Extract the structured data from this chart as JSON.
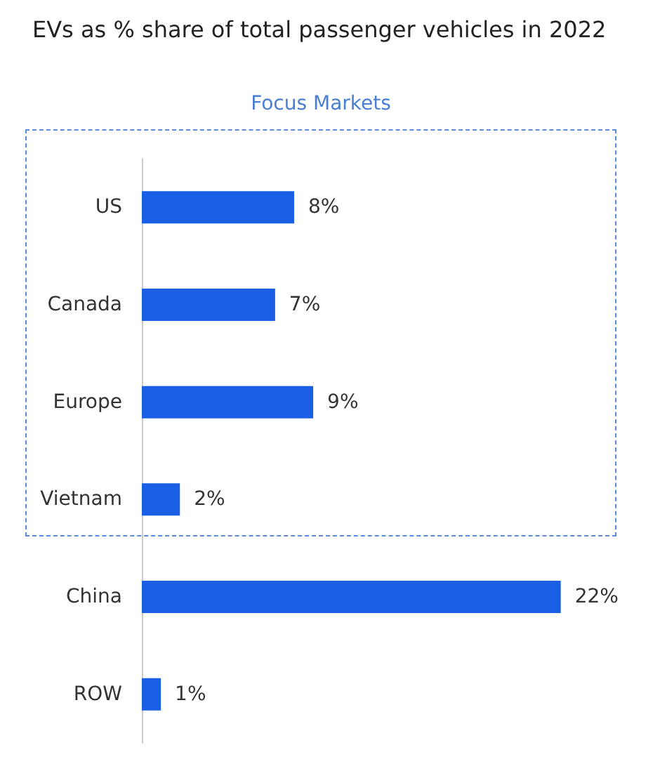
{
  "chart_data": {
    "type": "bar",
    "orientation": "horizontal",
    "title": "EVs as % share of total passenger vehicles in 2022",
    "categories": [
      "US",
      "Canada",
      "Europe",
      "Vietnam",
      "China",
      "ROW"
    ],
    "values": [
      8,
      7,
      9,
      2,
      22,
      1
    ],
    "value_labels": [
      "8%",
      "7%",
      "9%",
      "2%",
      "22%",
      "1%"
    ],
    "color": "#1a5ee6",
    "annotations": [
      "Focus Markets"
    ]
  }
}
